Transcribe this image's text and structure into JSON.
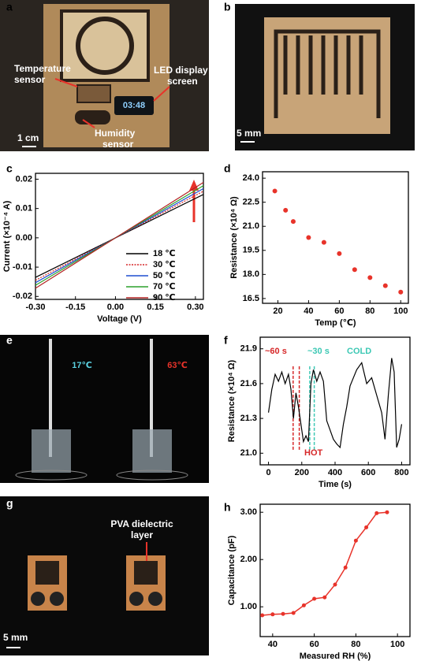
{
  "labels": [
    "a",
    "b",
    "c",
    "d",
    "e",
    "f",
    "g",
    "h"
  ],
  "photo_a": {
    "temperature": [
      "Temperature",
      "sensor"
    ],
    "led": [
      "LED display",
      "screen"
    ],
    "humidity": [
      "Humidity",
      "sensor"
    ],
    "clock": "03:48",
    "scale": "1 cm"
  },
  "photo_b": {
    "scale": "5 mm"
  },
  "photo_e": {
    "left": "17℃",
    "right": "63℃"
  },
  "photo_g": {
    "annotation": [
      "PVA dielectric",
      "layer"
    ],
    "scale": "5 mm"
  },
  "chart_data": [
    {
      "type": "line",
      "xlabel": "Voltage (V)",
      "ylabel": "Current  (×10⁻⁴ A)",
      "x": [
        -0.3,
        0.33
      ],
      "xlim": [
        -0.3,
        0.33
      ],
      "ylim": [
        -0.021,
        0.022
      ],
      "xticks": [
        {
          "value": -0.3,
          "label": "-0.30"
        },
        -0.15,
        {
          "value": 0,
          "label": "0.00"
        },
        0.15,
        {
          "value": 0.3,
          "label": "0.30"
        }
      ],
      "yticks": [
        -0.02,
        -0.01,
        {
          "value": 0,
          "label": "0.00"
        },
        0.01,
        0.02
      ],
      "legend": "lower right",
      "series": [
        {
          "name": "18 ℃",
          "color": "#000000",
          "values": [
            -0.0135,
            0.0148
          ]
        },
        {
          "name": "30 ℃",
          "color": "#d62728",
          "dash": true,
          "values": [
            -0.0145,
            0.0159
          ]
        },
        {
          "name": "50 ℃",
          "color": "#1f4fd1",
          "values": [
            -0.0153,
            0.0168
          ]
        },
        {
          "name": "70 ℃",
          "color": "#2ca02c",
          "values": [
            -0.0162,
            0.0178
          ]
        },
        {
          "name": "90 ℃",
          "color": "#b22222",
          "values": [
            -0.0172,
            0.0189
          ]
        }
      ]
    },
    {
      "type": "scatter",
      "xlabel": "Temp (℃)",
      "ylabel": "Resistance (×10⁴ Ω)",
      "color": "#e8332a",
      "x": [
        18,
        25,
        30,
        40,
        50,
        60,
        70,
        80,
        90,
        100
      ],
      "values": [
        23.2,
        22.0,
        21.3,
        20.3,
        20.0,
        19.3,
        18.3,
        17.8,
        17.3,
        16.9
      ],
      "xlim": [
        10,
        105
      ],
      "ylim": [
        16.2,
        24.4
      ],
      "xticks": [
        20,
        40,
        60,
        80,
        100
      ],
      "yticks": [
        {
          "value": 16.5,
          "label": "16.5"
        },
        {
          "value": 18,
          "label": "18.0"
        },
        19.5,
        {
          "value": 21,
          "label": "21.0"
        },
        22.5,
        {
          "value": 24,
          "label": "24.0"
        }
      ]
    },
    {
      "type": "line",
      "xlabel": "Time (s)",
      "ylabel": "Resistance  (×10⁴ Ω)",
      "x": [
        0,
        20,
        40,
        60,
        80,
        100,
        120,
        135,
        150,
        165,
        180,
        195,
        210,
        225,
        240,
        255,
        270,
        290,
        310,
        330,
        350,
        370,
        390,
        410,
        430,
        450,
        470,
        490,
        510,
        530,
        560,
        590,
        620,
        650,
        680,
        700,
        720,
        740,
        755,
        770,
        785,
        800
      ],
      "series": [
        {
          "name": null,
          "color": "#000000",
          "values": [
            21.35,
            21.55,
            21.68,
            21.62,
            21.7,
            21.6,
            21.68,
            21.55,
            21.3,
            21.52,
            21.4,
            21.25,
            21.1,
            21.15,
            21.1,
            21.6,
            21.72,
            21.62,
            21.7,
            21.62,
            21.28,
            21.2,
            21.12,
            21.08,
            21.05,
            21.25,
            21.4,
            21.58,
            21.65,
            21.72,
            21.78,
            21.6,
            21.65,
            21.5,
            21.35,
            21.12,
            21.5,
            21.82,
            21.7,
            21.05,
            21.12,
            21.25
          ]
        }
      ],
      "xlim": [
        -50,
        850
      ],
      "ylim": [
        20.9,
        22.0
      ],
      "xticks": [
        0,
        200,
        400,
        600,
        800
      ],
      "yticks": [
        {
          "value": 21,
          "label": "21.0"
        },
        21.3,
        21.6,
        21.9
      ],
      "reference_lines": [
        {
          "x": 148,
          "color": "#d62728"
        },
        {
          "x": 185,
          "color": "#d62728"
        },
        {
          "x": 248,
          "color": "#3cc8b4"
        },
        {
          "x": 275,
          "color": "#3cc8b4"
        }
      ],
      "annotations": [
        {
          "text": "~60 s",
          "color": "#d62728"
        },
        {
          "text": "~30 s",
          "color": "#3cc8b4"
        },
        {
          "text": "COLD",
          "color": "#3cc8b4"
        },
        {
          "text": "HOT",
          "color": "#d62728"
        }
      ]
    },
    {
      "type": "line",
      "markers": true,
      "xlabel": "Measured RH (%)",
      "ylabel": "Capacitance (pF)",
      "x": [
        35,
        40,
        45,
        50,
        55,
        60,
        65,
        70,
        75,
        80,
        85,
        90,
        95
      ],
      "series": [
        {
          "name": null,
          "color": "#e8332a",
          "values": [
            0.82,
            0.84,
            0.85,
            0.87,
            1.03,
            1.17,
            1.2,
            1.47,
            1.83,
            2.4,
            2.68,
            2.98,
            3.0
          ]
        }
      ],
      "xlim": [
        34,
        106
      ],
      "ylim": [
        0.37,
        3.17
      ],
      "xticks": [
        40,
        60,
        80,
        100
      ],
      "yticks": [
        {
          "value": 1,
          "label": "1.00"
        },
        {
          "value": 2,
          "label": "2.00"
        },
        {
          "value": 3,
          "label": "3.00"
        }
      ]
    }
  ]
}
